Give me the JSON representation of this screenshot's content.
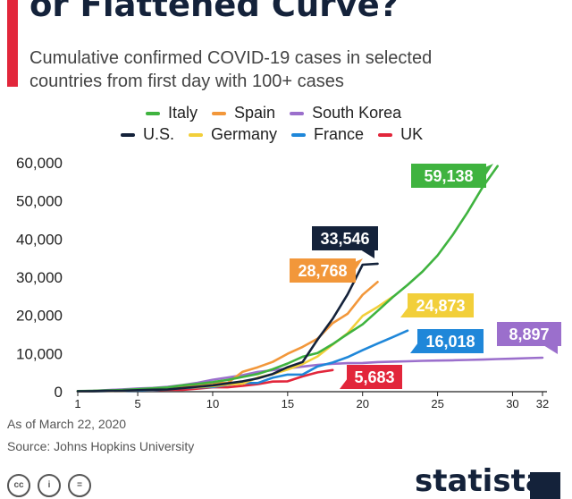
{
  "header": {
    "title": "or Flattened Curve?",
    "subtitle_lines": [
      "Cumulative confirmed COVID-19 cases in selected",
      "countries from first day with 100+ cases"
    ]
  },
  "footer": {
    "as_of": "As of March 22, 2020",
    "source": "Source: Johns Hopkins University",
    "brand": "statista"
  },
  "chart_data": {
    "type": "line",
    "title": "Cumulative confirmed COVID-19 cases in selected countries from first day with 100+ cases",
    "xlabel": "",
    "ylabel": "",
    "xlim": [
      1,
      32
    ],
    "ylim": [
      0,
      60000
    ],
    "grid": false,
    "x_ticks": [
      1,
      5,
      10,
      15,
      20,
      25,
      30,
      32
    ],
    "y_ticks": [
      0,
      10000,
      20000,
      30000,
      40000,
      50000,
      60000
    ],
    "y_tick_labels": [
      "0",
      "10,000",
      "20,000",
      "30,000",
      "40,000",
      "50,000",
      "60,000"
    ],
    "legend_rows": [
      [
        "Italy",
        "Spain",
        "South Korea"
      ],
      [
        "U.S.",
        "Germany",
        "France",
        "UK"
      ]
    ],
    "series": [
      {
        "name": "Italy",
        "color": "#3fb33f",
        "final_label": "59,138",
        "x": [
          1,
          2,
          3,
          4,
          5,
          6,
          7,
          8,
          9,
          10,
          11,
          12,
          13,
          14,
          15,
          16,
          17,
          18,
          19,
          20,
          21,
          22,
          23,
          24,
          25,
          26,
          27,
          28,
          29
        ],
        "values": [
          155,
          229,
          322,
          453,
          655,
          888,
          1128,
          1694,
          2036,
          2502,
          3089,
          3858,
          4636,
          5883,
          7375,
          9172,
          10149,
          12462,
          15113,
          17660,
          21157,
          24747,
          27980,
          31506,
          35713,
          41035,
          47021,
          53578,
          59138
        ]
      },
      {
        "name": "Spain",
        "color": "#f2973a",
        "final_label": "28,768",
        "x": [
          1,
          2,
          3,
          4,
          5,
          6,
          7,
          8,
          9,
          10,
          11,
          12,
          13,
          14,
          15,
          16,
          17,
          18,
          19,
          20,
          21
        ],
        "values": [
          120,
          165,
          222,
          259,
          400,
          500,
          673,
          1073,
          1695,
          2277,
          2277,
          5232,
          6391,
          7798,
          9942,
          11748,
          13910,
          17963,
          20410,
          25374,
          28768
        ]
      },
      {
        "name": "South Korea",
        "color": "#9b6fcc",
        "final_label": "8,897",
        "x": [
          1,
          2,
          3,
          4,
          5,
          6,
          7,
          8,
          9,
          10,
          11,
          12,
          13,
          14,
          15,
          16,
          17,
          18,
          19,
          20,
          21,
          22,
          23,
          24,
          25,
          26,
          27,
          28,
          29,
          30,
          31,
          32
        ],
        "values": [
          104,
          204,
          433,
          602,
          833,
          977,
          1261,
          1766,
          2337,
          3150,
          3736,
          4335,
          5186,
          5621,
          6088,
          6593,
          7041,
          7314,
          7478,
          7513,
          7755,
          7869,
          7979,
          8086,
          8162,
          8236,
          8320,
          8413,
          8565,
          8652,
          8799,
          8897
        ]
      },
      {
        "name": "U.S.",
        "color": "#14223a",
        "final_label": "33,546",
        "x": [
          1,
          2,
          3,
          4,
          5,
          6,
          7,
          8,
          9,
          10,
          11,
          12,
          13,
          14,
          15,
          16,
          17,
          18,
          19,
          20,
          21
        ],
        "values": [
          118,
          149,
          217,
          262,
          402,
          518,
          583,
          959,
          1281,
          1663,
          2179,
          2727,
          3499,
          4632,
          6421,
          7786,
          13680,
          19101,
          25493,
          33272,
          33546
        ]
      },
      {
        "name": "Germany",
        "color": "#f2cf3a",
        "final_label": "24,873",
        "x": [
          1,
          2,
          3,
          4,
          5,
          6,
          7,
          8,
          9,
          10,
          11,
          12,
          13,
          14,
          15,
          16,
          17,
          18,
          19,
          20,
          21,
          22
        ],
        "values": [
          130,
          159,
          196,
          262,
          482,
          670,
          799,
          1040,
          1176,
          1457,
          1908,
          2078,
          3675,
          4585,
          5795,
          7272,
          9257,
          12327,
          15320,
          19848,
          22213,
          24873
        ]
      },
      {
        "name": "France",
        "color": "#1f87d9",
        "final_label": "16,018",
        "x": [
          1,
          2,
          3,
          4,
          5,
          6,
          7,
          8,
          9,
          10,
          11,
          12,
          13,
          14,
          15,
          16,
          17,
          18,
          19,
          20,
          21,
          22,
          23
        ],
        "values": [
          100,
          130,
          191,
          204,
          285,
          377,
          653,
          949,
          1126,
          1209,
          1784,
          2281,
          2281,
          3661,
          4469,
          4499,
          6633,
          7652,
          9043,
          10871,
          12612,
          14282,
          16018
        ]
      },
      {
        "name": "UK",
        "color": "#e2263b",
        "final_label": "5,683",
        "x": [
          1,
          2,
          3,
          4,
          5,
          6,
          7,
          8,
          9,
          10,
          11,
          12,
          13,
          14,
          15,
          16,
          17,
          18
        ],
        "values": [
          116,
          164,
          207,
          274,
          322,
          384,
          459,
          459,
          802,
          1144,
          1145,
          1551,
          1960,
          2642,
          2716,
          4014,
          5067,
          5683
        ]
      }
    ]
  }
}
